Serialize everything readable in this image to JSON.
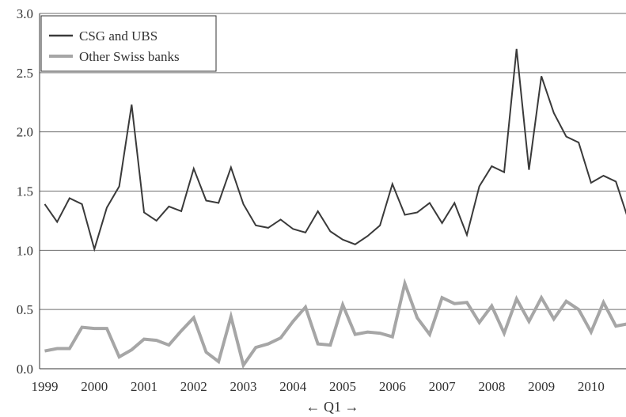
{
  "chart_data": {
    "type": "line",
    "title": "",
    "xlabel": "← Q1 →",
    "ylabel": "",
    "x_start": "1999Q1",
    "x_frequency": "quarterly",
    "x_tick_labels": [
      "1999",
      "2000",
      "2001",
      "2002",
      "2003",
      "2004",
      "2005",
      "2006",
      "2007",
      "2008",
      "2009",
      "2010"
    ],
    "y_tick_labels": [
      "0.0",
      "0.5",
      "1.0",
      "1.5",
      "2.0",
      "2.5",
      "3.0"
    ],
    "ylim": [
      0,
      3.0
    ],
    "grid": "horizontal",
    "legend_position": "top-left",
    "series": [
      {
        "name": "CSG and UBS",
        "color": "#3a3a3a",
        "values": [
          1.39,
          1.24,
          1.44,
          1.39,
          1.01,
          1.36,
          1.54,
          2.23,
          1.32,
          1.25,
          1.37,
          1.33,
          1.69,
          1.42,
          1.4,
          1.7,
          1.39,
          1.21,
          1.19,
          1.26,
          1.18,
          1.15,
          1.33,
          1.16,
          1.09,
          1.05,
          1.12,
          1.21,
          1.56,
          1.3,
          1.32,
          1.4,
          1.23,
          1.4,
          1.13,
          1.54,
          1.71,
          1.66,
          2.7,
          1.68,
          2.47,
          2.16,
          1.96,
          1.91,
          1.57,
          1.63,
          1.58,
          1.26
        ]
      },
      {
        "name": "Other Swiss banks",
        "color": "#a6a6a6",
        "values": [
          0.15,
          0.17,
          0.17,
          0.35,
          0.34,
          0.34,
          0.1,
          0.16,
          0.25,
          0.24,
          0.2,
          0.32,
          0.43,
          0.14,
          0.06,
          0.44,
          0.03,
          0.18,
          0.21,
          0.26,
          0.4,
          0.52,
          0.21,
          0.2,
          0.54,
          0.29,
          0.31,
          0.3,
          0.27,
          0.72,
          0.43,
          0.29,
          0.6,
          0.55,
          0.56,
          0.39,
          0.53,
          0.3,
          0.59,
          0.4,
          0.6,
          0.42,
          0.57,
          0.5,
          0.31,
          0.56,
          0.36,
          0.38
        ]
      }
    ]
  }
}
